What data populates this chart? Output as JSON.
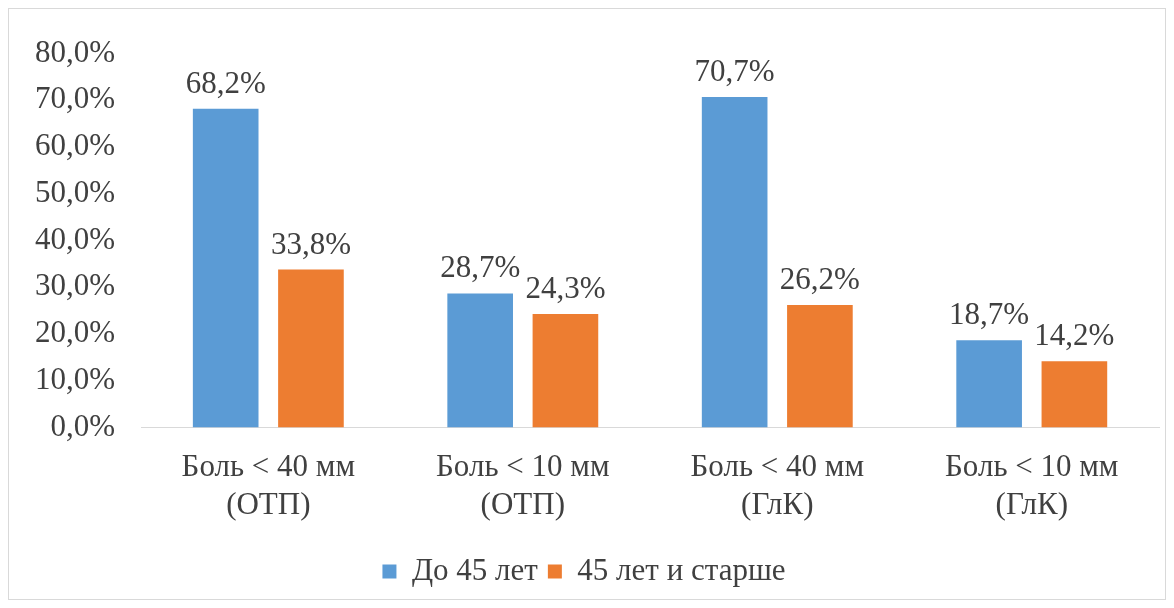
{
  "chart_data": {
    "type": "bar",
    "categories": [
      "Боль < 40 мм\n(ОТП)",
      "Боль < 10 мм\n(ОТП)",
      "Боль < 40 мм\n(ГлК)",
      "Боль < 10 мм\n(ГлК)"
    ],
    "series": [
      {
        "name": "До 45 лет",
        "color": "#5b9bd5",
        "values": [
          68.2,
          28.7,
          70.7,
          18.7
        ],
        "value_labels": [
          "68,2%",
          "28,7%",
          "70,7%",
          "18,7%"
        ]
      },
      {
        "name": "45 лет и старше",
        "color": "#ed7d31",
        "values": [
          33.8,
          24.3,
          26.2,
          14.2
        ],
        "value_labels": [
          "33,8%",
          "24,3%",
          "26,2%",
          "14,2%"
        ]
      }
    ],
    "ylim": [
      0,
      80
    ],
    "yticks": [
      {
        "value": 0,
        "label": "0,0%"
      },
      {
        "value": 10,
        "label": "10,0%"
      },
      {
        "value": 20,
        "label": "20,0%"
      },
      {
        "value": 30,
        "label": "30,0%"
      },
      {
        "value": 40,
        "label": "40,0%"
      },
      {
        "value": 50,
        "label": "50,0%"
      },
      {
        "value": 60,
        "label": "60,0%"
      },
      {
        "value": 70,
        "label": "70,0%"
      },
      {
        "value": 80,
        "label": "80,0%"
      }
    ],
    "grid": false,
    "legend": "bottom"
  }
}
